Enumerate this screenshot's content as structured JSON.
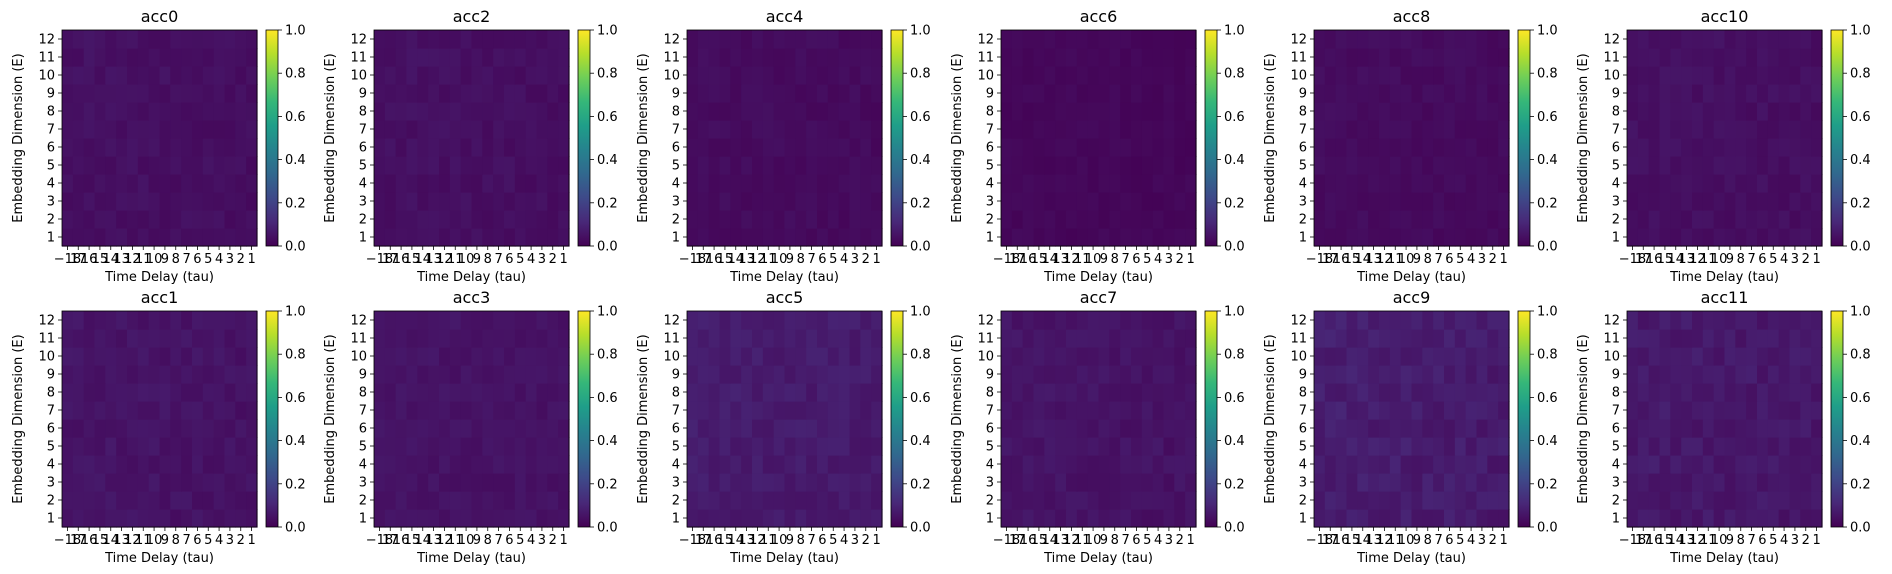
{
  "figure": {
    "colormap": "viridis",
    "colorbar_ticks": [
      "0.0",
      "0.2",
      "0.4",
      "0.6",
      "0.8",
      "1.0"
    ],
    "viridis_stops": [
      "#440154",
      "#482878",
      "#3e4989",
      "#31688e",
      "#26828e",
      "#1f9e89",
      "#35b779",
      "#6ece58",
      "#b5de2b",
      "#fde725"
    ]
  },
  "chart_data": [
    {
      "type": "heatmap",
      "title": "acc0",
      "xlabel": "Time Delay (tau)",
      "ylabel": "Embedding Dimension (E)",
      "x": [
        "-18",
        "17",
        "16",
        "15",
        "14",
        "13",
        "12",
        "11",
        "10",
        "9",
        "8",
        "7",
        "6",
        "5",
        "4",
        "3",
        "2",
        "1"
      ],
      "y": [
        "1",
        "2",
        "3",
        "4",
        "5",
        "6",
        "7",
        "8",
        "9",
        "10",
        "11",
        "12"
      ],
      "zlim": [
        0,
        1
      ],
      "base_value": 0.03,
      "variation": 0.03,
      "seed": 11
    },
    {
      "type": "heatmap",
      "title": "acc2",
      "xlabel": "Time Delay (tau)",
      "ylabel": "Embedding Dimension (E)",
      "x": [
        "-18",
        "17",
        "16",
        "15",
        "14",
        "13",
        "12",
        "11",
        "10",
        "9",
        "8",
        "7",
        "6",
        "5",
        "4",
        "3",
        "2",
        "1"
      ],
      "y": [
        "1",
        "2",
        "3",
        "4",
        "5",
        "6",
        "7",
        "8",
        "9",
        "10",
        "11",
        "12"
      ],
      "zlim": [
        0,
        1
      ],
      "base_value": 0.03,
      "variation": 0.03,
      "seed": 23
    },
    {
      "type": "heatmap",
      "title": "acc4",
      "xlabel": "Time Delay (tau)",
      "ylabel": "Embedding Dimension (E)",
      "x": [
        "-18",
        "17",
        "16",
        "15",
        "14",
        "13",
        "12",
        "11",
        "10",
        "9",
        "8",
        "7",
        "6",
        "5",
        "4",
        "3",
        "2",
        "1"
      ],
      "y": [
        "1",
        "2",
        "3",
        "4",
        "5",
        "6",
        "7",
        "8",
        "9",
        "10",
        "11",
        "12"
      ],
      "zlim": [
        0,
        1
      ],
      "base_value": 0.02,
      "variation": 0.025,
      "seed": 37
    },
    {
      "type": "heatmap",
      "title": "acc6",
      "xlabel": "Time Delay (tau)",
      "ylabel": "Embedding Dimension (E)",
      "x": [
        "-18",
        "17",
        "16",
        "15",
        "14",
        "13",
        "12",
        "11",
        "10",
        "9",
        "8",
        "7",
        "6",
        "5",
        "4",
        "3",
        "2",
        "1"
      ],
      "y": [
        "1",
        "2",
        "3",
        "4",
        "5",
        "6",
        "7",
        "8",
        "9",
        "10",
        "11",
        "12"
      ],
      "zlim": [
        0,
        1
      ],
      "base_value": 0.01,
      "variation": 0.02,
      "seed": 41
    },
    {
      "type": "heatmap",
      "title": "acc8",
      "xlabel": "Time Delay (tau)",
      "ylabel": "Embedding Dimension (E)",
      "x": [
        "-18",
        "17",
        "16",
        "15",
        "14",
        "13",
        "12",
        "11",
        "10",
        "9",
        "8",
        "7",
        "6",
        "5",
        "4",
        "3",
        "2",
        "1"
      ],
      "y": [
        "1",
        "2",
        "3",
        "4",
        "5",
        "6",
        "7",
        "8",
        "9",
        "10",
        "11",
        "12"
      ],
      "zlim": [
        0,
        1
      ],
      "base_value": 0.02,
      "variation": 0.025,
      "seed": 53
    },
    {
      "type": "heatmap",
      "title": "acc10",
      "xlabel": "Time Delay (tau)",
      "ylabel": "Embedding Dimension (E)",
      "x": [
        "-18",
        "17",
        "16",
        "15",
        "14",
        "13",
        "12",
        "11",
        "10",
        "9",
        "8",
        "7",
        "6",
        "5",
        "4",
        "3",
        "2",
        "1"
      ],
      "y": [
        "1",
        "2",
        "3",
        "4",
        "5",
        "6",
        "7",
        "8",
        "9",
        "10",
        "11",
        "12"
      ],
      "zlim": [
        0,
        1
      ],
      "base_value": 0.03,
      "variation": 0.03,
      "seed": 67
    },
    {
      "type": "heatmap",
      "title": "acc1",
      "xlabel": "Time Delay (tau)",
      "ylabel": "Embedding Dimension (E)",
      "x": [
        "-18",
        "17",
        "16",
        "15",
        "14",
        "13",
        "12",
        "11",
        "10",
        "9",
        "8",
        "7",
        "6",
        "5",
        "4",
        "3",
        "2",
        "1"
      ],
      "y": [
        "1",
        "2",
        "3",
        "4",
        "5",
        "6",
        "7",
        "8",
        "9",
        "10",
        "11",
        "12"
      ],
      "zlim": [
        0,
        1
      ],
      "base_value": 0.04,
      "variation": 0.035,
      "seed": 71
    },
    {
      "type": "heatmap",
      "title": "acc3",
      "xlabel": "Time Delay (tau)",
      "ylabel": "Embedding Dimension (E)",
      "x": [
        "-18",
        "17",
        "16",
        "15",
        "14",
        "13",
        "12",
        "11",
        "10",
        "9",
        "8",
        "7",
        "6",
        "5",
        "4",
        "3",
        "2",
        "1"
      ],
      "y": [
        "1",
        "2",
        "3",
        "4",
        "5",
        "6",
        "7",
        "8",
        "9",
        "10",
        "11",
        "12"
      ],
      "zlim": [
        0,
        1
      ],
      "base_value": 0.04,
      "variation": 0.03,
      "seed": 83
    },
    {
      "type": "heatmap",
      "title": "acc5",
      "xlabel": "Time Delay (tau)",
      "ylabel": "Embedding Dimension (E)",
      "x": [
        "-18",
        "17",
        "16",
        "15",
        "14",
        "13",
        "12",
        "11",
        "10",
        "9",
        "8",
        "7",
        "6",
        "5",
        "4",
        "3",
        "2",
        "1"
      ],
      "y": [
        "1",
        "2",
        "3",
        "4",
        "5",
        "6",
        "7",
        "8",
        "9",
        "10",
        "11",
        "12"
      ],
      "zlim": [
        0,
        1
      ],
      "base_value": 0.06,
      "variation": 0.04,
      "seed": 97
    },
    {
      "type": "heatmap",
      "title": "acc7",
      "xlabel": "Time Delay (tau)",
      "ylabel": "Embedding Dimension (E)",
      "x": [
        "-18",
        "17",
        "16",
        "15",
        "14",
        "13",
        "12",
        "11",
        "10",
        "9",
        "8",
        "7",
        "6",
        "5",
        "4",
        "3",
        "2",
        "1"
      ],
      "y": [
        "1",
        "2",
        "3",
        "4",
        "5",
        "6",
        "7",
        "8",
        "9",
        "10",
        "11",
        "12"
      ],
      "zlim": [
        0,
        1
      ],
      "base_value": 0.04,
      "variation": 0.035,
      "seed": 101
    },
    {
      "type": "heatmap",
      "title": "acc9",
      "xlabel": "Time Delay (tau)",
      "ylabel": "Embedding Dimension (E)",
      "x": [
        "-18",
        "17",
        "16",
        "15",
        "14",
        "13",
        "12",
        "11",
        "10",
        "9",
        "8",
        "7",
        "6",
        "5",
        "4",
        "3",
        "2",
        "1"
      ],
      "y": [
        "1",
        "2",
        "3",
        "4",
        "5",
        "6",
        "7",
        "8",
        "9",
        "10",
        "11",
        "12"
      ],
      "zlim": [
        0,
        1
      ],
      "base_value": 0.06,
      "variation": 0.05,
      "seed": 113
    },
    {
      "type": "heatmap",
      "title": "acc11",
      "xlabel": "Time Delay (tau)",
      "ylabel": "Embedding Dimension (E)",
      "x": [
        "-18",
        "17",
        "16",
        "15",
        "14",
        "13",
        "12",
        "11",
        "10",
        "9",
        "8",
        "7",
        "6",
        "5",
        "4",
        "3",
        "2",
        "1"
      ],
      "y": [
        "1",
        "2",
        "3",
        "4",
        "5",
        "6",
        "7",
        "8",
        "9",
        "10",
        "11",
        "12"
      ],
      "zlim": [
        0,
        1
      ],
      "base_value": 0.05,
      "variation": 0.045,
      "seed": 127
    }
  ]
}
